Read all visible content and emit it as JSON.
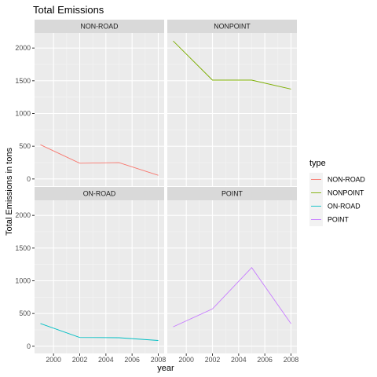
{
  "chart_data": {
    "type": "line",
    "title": "Total Emissions",
    "xlabel": "year",
    "ylabel": "Total Emissions in tons",
    "xlim": [
      1998.55,
      2008.45
    ],
    "ylim": [
      -110,
      2230
    ],
    "x_ticks": [
      2000,
      2002,
      2004,
      2006,
      2008
    ],
    "y_ticks": [
      0,
      500,
      1000,
      1500,
      2000
    ],
    "grid": true,
    "facets": [
      "NON-ROAD",
      "NONPOINT",
      "ON-ROAD",
      "POINT"
    ],
    "facet_layout": "2x2",
    "legend": {
      "title": "type",
      "position": "right",
      "entries": [
        "NON-ROAD",
        "NONPOINT",
        "ON-ROAD",
        "POINT"
      ]
    },
    "series": [
      {
        "name": "NON-ROAD",
        "color": "#F8766D",
        "x": [
          1999,
          2002,
          2005,
          2008
        ],
        "y": [
          523,
          241,
          249,
          56
        ]
      },
      {
        "name": "NONPOINT",
        "color": "#7CAE00",
        "x": [
          1999,
          2002,
          2005,
          2008
        ],
        "y": [
          2108,
          1510,
          1510,
          1373
        ]
      },
      {
        "name": "ON-ROAD",
        "color": "#00BFC4",
        "x": [
          1999,
          2002,
          2005,
          2008
        ],
        "y": [
          347,
          134,
          130,
          88
        ]
      },
      {
        "name": "POINT",
        "color": "#C77CFF",
        "x": [
          1999,
          2002,
          2005,
          2008
        ],
        "y": [
          297,
          570,
          1202,
          345
        ]
      }
    ]
  }
}
